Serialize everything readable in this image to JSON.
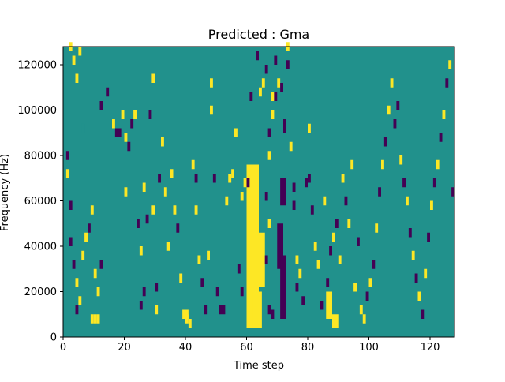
{
  "chart_data": {
    "type": "heatmap",
    "title": "Predicted : Gma",
    "xlabel": "Time step",
    "ylabel": "Frequency (Hz)",
    "xlim": [
      0,
      128
    ],
    "ylim": [
      0,
      128000
    ],
    "xticks": [
      0,
      20,
      40,
      60,
      80,
      100,
      120
    ],
    "yticks": [
      0,
      20000,
      40000,
      60000,
      80000,
      100000,
      120000
    ],
    "grid": false,
    "colormap": "viridis",
    "levels": {
      "low": -1,
      "mid": 0,
      "high": 1
    },
    "colors": {
      "low": "#440154",
      "mid": "#21918c",
      "high": "#fde725"
    },
    "cells": [
      [
        2,
        126000,
        1
      ],
      [
        3,
        120000,
        1
      ],
      [
        4,
        112000,
        1
      ],
      [
        5,
        124000,
        1
      ],
      [
        6,
        90000,
        0
      ],
      [
        1,
        78000,
        -1
      ],
      [
        1,
        70000,
        1
      ],
      [
        2,
        56000,
        -1
      ],
      [
        2,
        40000,
        -1
      ],
      [
        3,
        30000,
        -1
      ],
      [
        4,
        22000,
        1
      ],
      [
        4,
        10000,
        -1
      ],
      [
        5,
        14000,
        1
      ],
      [
        6,
        34000,
        1
      ],
      [
        7,
        42000,
        1
      ],
      [
        8,
        46000,
        -1
      ],
      [
        9,
        54000,
        1
      ],
      [
        9,
        6000,
        1
      ],
      [
        10,
        6000,
        1
      ],
      [
        11,
        6000,
        1
      ],
      [
        10,
        26000,
        1
      ],
      [
        11,
        18000,
        1
      ],
      [
        12,
        30000,
        -1
      ],
      [
        12,
        100000,
        -1
      ],
      [
        14,
        106000,
        -1
      ],
      [
        16,
        92000,
        1
      ],
      [
        17,
        88000,
        -1
      ],
      [
        18,
        88000,
        -1
      ],
      [
        19,
        96000,
        1
      ],
      [
        20,
        86000,
        1
      ],
      [
        20,
        62000,
        1
      ],
      [
        21,
        82000,
        -1
      ],
      [
        22,
        92000,
        -1
      ],
      [
        23,
        96000,
        1
      ],
      [
        24,
        48000,
        -1
      ],
      [
        25,
        36000,
        1
      ],
      [
        25,
        12000,
        -1
      ],
      [
        26,
        64000,
        1
      ],
      [
        26,
        18000,
        -1
      ],
      [
        27,
        50000,
        -1
      ],
      [
        28,
        96000,
        -1
      ],
      [
        29,
        112000,
        1
      ],
      [
        29,
        54000,
        1
      ],
      [
        30,
        20000,
        -1
      ],
      [
        30,
        10000,
        1
      ],
      [
        31,
        68000,
        -1
      ],
      [
        32,
        84000,
        1
      ],
      [
        33,
        62000,
        1
      ],
      [
        34,
        38000,
        1
      ],
      [
        35,
        70000,
        1
      ],
      [
        36,
        54000,
        1
      ],
      [
        37,
        46000,
        -1
      ],
      [
        38,
        24000,
        1
      ],
      [
        39,
        8000,
        1
      ],
      [
        40,
        8000,
        1
      ],
      [
        40,
        6000,
        1
      ],
      [
        41,
        4000,
        1
      ],
      [
        42,
        74000,
        1
      ],
      [
        43,
        68000,
        -1
      ],
      [
        43,
        54000,
        1
      ],
      [
        44,
        32000,
        1
      ],
      [
        45,
        22000,
        -1
      ],
      [
        46,
        10000,
        -1
      ],
      [
        47,
        34000,
        1
      ],
      [
        48,
        98000,
        1
      ],
      [
        48,
        110000,
        1
      ],
      [
        49,
        68000,
        -1
      ],
      [
        50,
        18000,
        -1
      ],
      [
        51,
        10000,
        -1
      ],
      [
        52,
        10000,
        -1
      ],
      [
        53,
        58000,
        1
      ],
      [
        54,
        68000,
        1
      ],
      [
        55,
        70000,
        1
      ],
      [
        56,
        88000,
        1
      ],
      [
        57,
        28000,
        -1
      ],
      [
        58,
        18000,
        -1
      ],
      [
        58,
        60000,
        1
      ],
      [
        59,
        66000,
        1
      ],
      [
        60,
        66000,
        -1
      ],
      [
        61,
        104000,
        -1
      ],
      [
        63,
        122000,
        -1
      ],
      [
        64,
        106000,
        1
      ],
      [
        65,
        110000,
        1
      ],
      [
        66,
        116000,
        -1
      ],
      [
        66,
        60000,
        -1
      ],
      [
        66,
        32000,
        -1
      ],
      [
        67,
        88000,
        -1
      ],
      [
        67,
        78000,
        1
      ],
      [
        67,
        48000,
        1
      ],
      [
        67,
        10000,
        -1
      ],
      [
        68,
        8000,
        -1
      ],
      [
        68,
        104000,
        1
      ],
      [
        68,
        96000,
        1
      ],
      [
        69,
        120000,
        -1
      ],
      [
        69,
        104000,
        -1
      ],
      [
        70,
        110000,
        1
      ],
      [
        71,
        108000,
        -1
      ],
      [
        72,
        92000,
        -1
      ],
      [
        72,
        90000,
        -1
      ],
      [
        73,
        126000,
        1
      ],
      [
        73,
        118000,
        -1
      ],
      [
        74,
        82000,
        1
      ],
      [
        75,
        64000,
        -1
      ],
      [
        75,
        56000,
        -1
      ],
      [
        76,
        32000,
        1
      ],
      [
        76,
        20000,
        -1
      ],
      [
        77,
        26000,
        1
      ],
      [
        78,
        14000,
        -1
      ],
      [
        79,
        66000,
        -1
      ],
      [
        80,
        68000,
        -1
      ],
      [
        80,
        90000,
        1
      ],
      [
        81,
        54000,
        -1
      ],
      [
        82,
        38000,
        1
      ],
      [
        83,
        30000,
        1
      ],
      [
        84,
        12000,
        -1
      ],
      [
        85,
        58000,
        1
      ],
      [
        86,
        22000,
        -1
      ],
      [
        87,
        36000,
        -1
      ],
      [
        88,
        42000,
        1
      ],
      [
        89,
        48000,
        -1
      ],
      [
        90,
        32000,
        1
      ],
      [
        91,
        68000,
        1
      ],
      [
        92,
        58000,
        -1
      ],
      [
        93,
        48000,
        1
      ],
      [
        94,
        74000,
        1
      ],
      [
        95,
        20000,
        1
      ],
      [
        96,
        40000,
        -1
      ],
      [
        97,
        10000,
        1
      ],
      [
        98,
        6000,
        1
      ],
      [
        99,
        16000,
        -1
      ],
      [
        100,
        22000,
        1
      ],
      [
        101,
        30000,
        -1
      ],
      [
        102,
        46000,
        1
      ],
      [
        103,
        62000,
        -1
      ],
      [
        104,
        74000,
        1
      ],
      [
        105,
        84000,
        -1
      ],
      [
        106,
        98000,
        1
      ],
      [
        107,
        110000,
        1
      ],
      [
        108,
        92000,
        -1
      ],
      [
        109,
        100000,
        -1
      ],
      [
        110,
        76000,
        1
      ],
      [
        111,
        66000,
        -1
      ],
      [
        112,
        58000,
        1
      ],
      [
        113,
        44000,
        -1
      ],
      [
        114,
        34000,
        1
      ],
      [
        115,
        24000,
        -1
      ],
      [
        116,
        16000,
        1
      ],
      [
        117,
        8000,
        -1
      ],
      [
        118,
        26000,
        1
      ],
      [
        119,
        42000,
        -1
      ],
      [
        120,
        56000,
        1
      ],
      [
        121,
        66000,
        -1
      ],
      [
        122,
        74000,
        1
      ],
      [
        123,
        86000,
        -1
      ],
      [
        124,
        96000,
        1
      ],
      [
        125,
        110000,
        -1
      ],
      [
        126,
        118000,
        1
      ],
      [
        127,
        62000,
        -1
      ]
    ],
    "regions": [
      [
        60,
        4000,
        4,
        72000,
        1
      ],
      [
        61,
        60000,
        3,
        14000,
        1
      ],
      [
        62,
        4000,
        3,
        16000,
        1
      ],
      [
        63,
        22000,
        3,
        24000,
        1
      ],
      [
        71,
        8000,
        2,
        28000,
        -1
      ],
      [
        70,
        30000,
        2,
        20000,
        -1
      ],
      [
        71,
        58000,
        2,
        12000,
        -1
      ],
      [
        86,
        8000,
        2,
        12000,
        1
      ],
      [
        88,
        4000,
        2,
        6000,
        1
      ]
    ]
  }
}
